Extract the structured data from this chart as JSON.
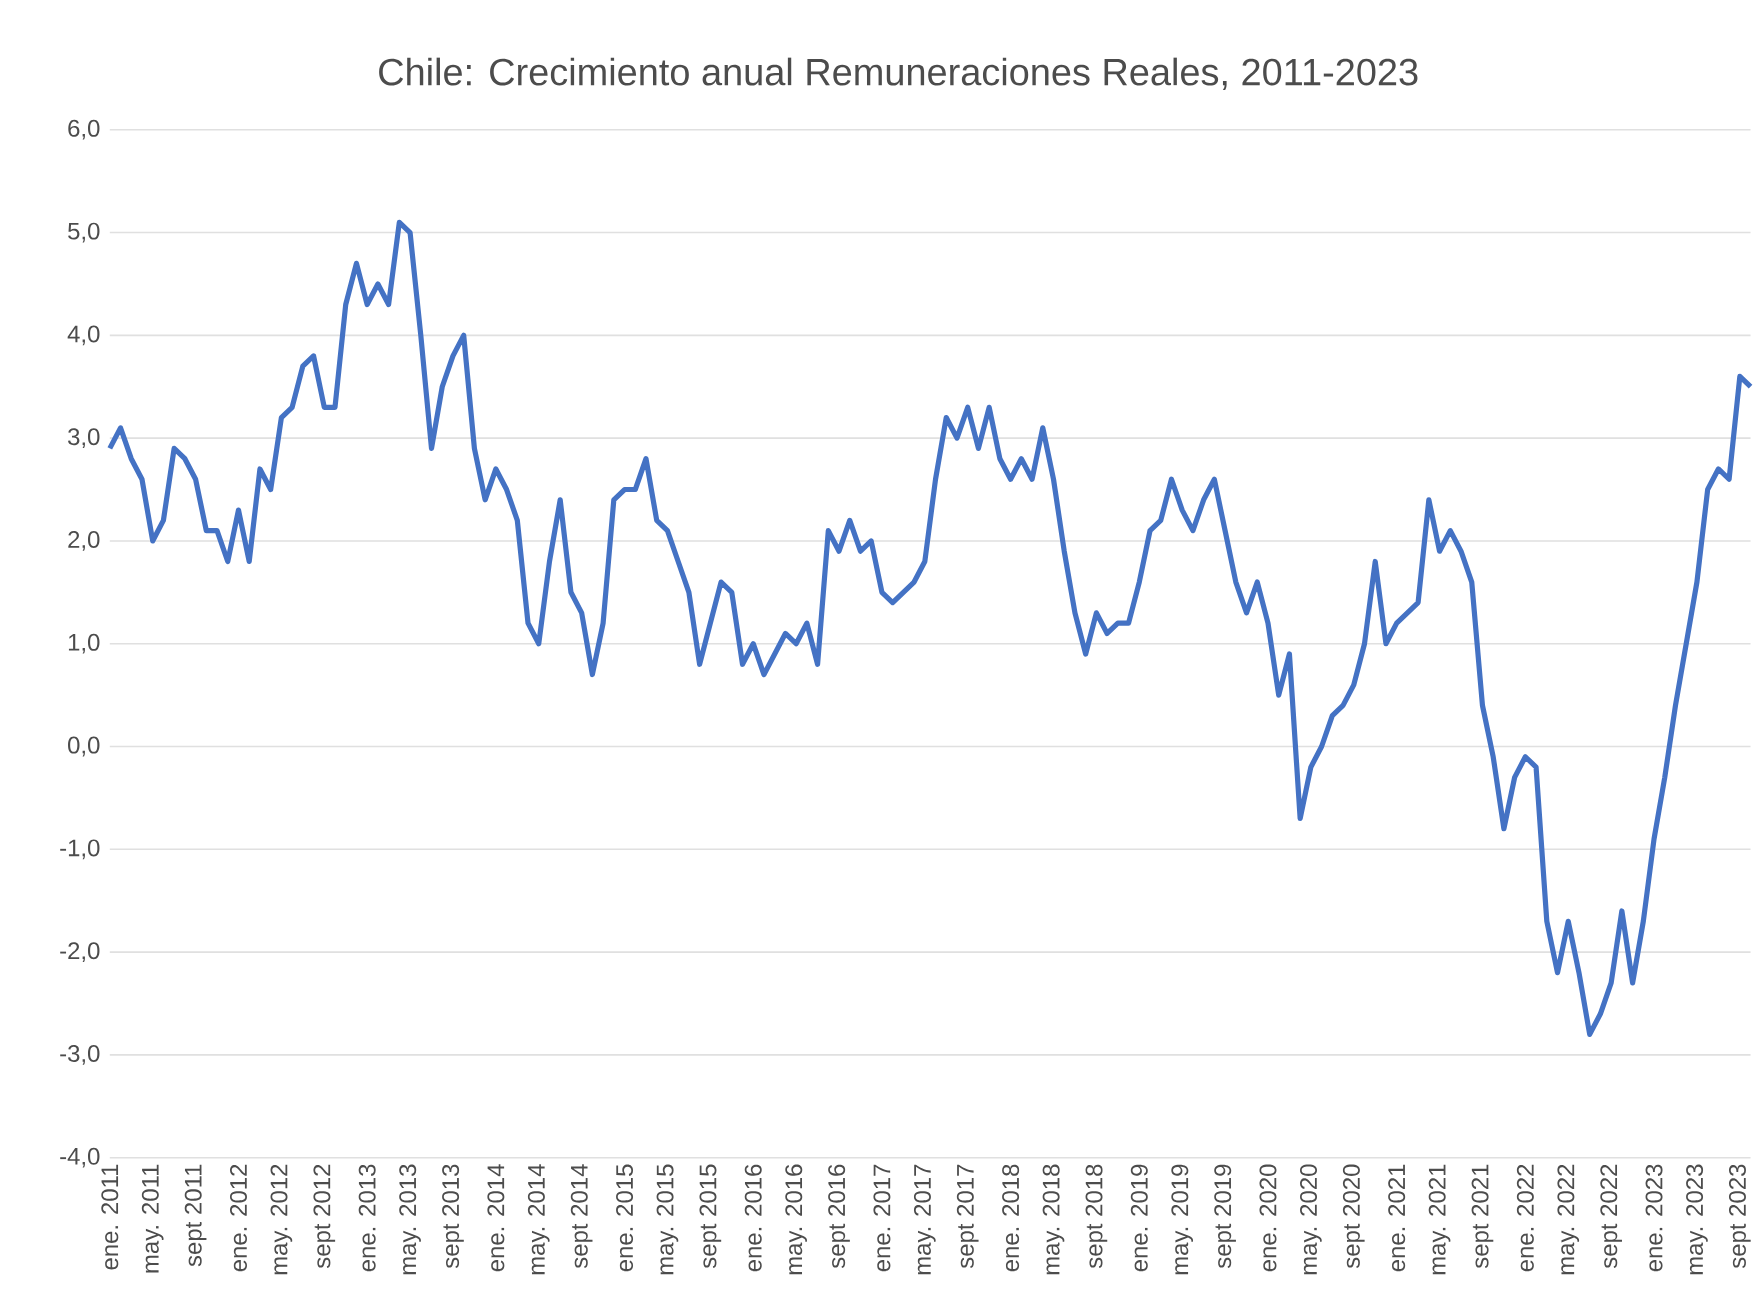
{
  "chart_data": {
    "type": "line",
    "title": "Chile: Crecimiento anual Remuneraciones Reales, 2011-2023",
    "categories": [
      "ene. 2011",
      null,
      null,
      null,
      "may. 2011",
      null,
      null,
      null,
      "sept 2011",
      null,
      null,
      null,
      "ene. 2012",
      null,
      null,
      null,
      "may. 2012",
      null,
      null,
      null,
      "sept 2012",
      null,
      null,
      null,
      "ene. 2013",
      null,
      null,
      null,
      "may. 2013",
      null,
      null,
      null,
      "sept 2013",
      null,
      null,
      null,
      "ene. 2014",
      null,
      null,
      null,
      "may. 2014",
      null,
      null,
      null,
      "sept 2014",
      null,
      null,
      null,
      "ene. 2015",
      null,
      null,
      null,
      "may. 2015",
      null,
      null,
      null,
      "sept 2015",
      null,
      null,
      null,
      "ene. 2016",
      null,
      null,
      null,
      "may. 2016",
      null,
      null,
      null,
      "sept 2016",
      null,
      null,
      null,
      "ene. 2017",
      null,
      null,
      null,
      "may. 2017",
      null,
      null,
      null,
      "sept 2017",
      null,
      null,
      null,
      "ene. 2018",
      null,
      null,
      null,
      "may. 2018",
      null,
      null,
      null,
      "sept 2018",
      null,
      null,
      null,
      "ene. 2019",
      null,
      null,
      null,
      "may. 2019",
      null,
      null,
      null,
      "sept 2019",
      null,
      null,
      null,
      "ene. 2020",
      null,
      null,
      null,
      "may. 2020",
      null,
      null,
      null,
      "sept 2020",
      null,
      null,
      null,
      "ene. 2021",
      null,
      null,
      null,
      "may. 2021",
      null,
      null,
      null,
      "sept 2021",
      null,
      null,
      null,
      "ene. 2022",
      null,
      null,
      null,
      "may. 2022",
      null,
      null,
      null,
      "sept 2022",
      null,
      null,
      null,
      "ene. 2023",
      null,
      null,
      null,
      "may. 2023",
      null,
      null,
      null,
      "sept 2023",
      null
    ],
    "series": [
      {
        "color": "#4472c4",
        "values": [
          2.9,
          3.1,
          2.8,
          2.6,
          2.0,
          2.2,
          2.9,
          2.8,
          2.6,
          2.1,
          2.1,
          1.8,
          2.3,
          1.8,
          2.7,
          2.5,
          3.2,
          3.3,
          3.7,
          3.8,
          3.3,
          3.3,
          4.3,
          4.7,
          4.3,
          4.5,
          4.3,
          5.1,
          5.0,
          4.0,
          2.9,
          3.5,
          3.8,
          4.0,
          2.9,
          2.4,
          2.7,
          2.5,
          2.2,
          1.2,
          1.0,
          1.8,
          2.4,
          1.5,
          1.3,
          0.7,
          1.2,
          2.4,
          2.5,
          2.5,
          2.8,
          2.2,
          2.1,
          1.8,
          1.5,
          0.8,
          1.2,
          1.6,
          1.5,
          0.8,
          1.0,
          0.7,
          0.9,
          1.1,
          1.0,
          1.2,
          0.8,
          2.1,
          1.9,
          2.2,
          1.9,
          2.0,
          1.5,
          1.4,
          1.5,
          1.6,
          1.8,
          2.6,
          3.2,
          3.0,
          3.3,
          2.9,
          3.3,
          2.8,
          2.6,
          2.8,
          2.6,
          3.1,
          2.6,
          1.9,
          1.3,
          0.9,
          1.3,
          1.1,
          1.2,
          1.2,
          1.6,
          2.1,
          2.2,
          2.6,
          2.3,
          2.1,
          2.4,
          2.6,
          2.1,
          1.6,
          1.3,
          1.6,
          1.2,
          0.5,
          0.9,
          -0.7,
          -0.2,
          0.0,
          0.3,
          0.4,
          0.6,
          1.0,
          1.8,
          1.0,
          1.2,
          1.3,
          1.4,
          2.4,
          1.9,
          2.1,
          1.9,
          1.6,
          0.4,
          -0.1,
          -0.8,
          -0.3,
          -0.1,
          -0.2,
          -1.7,
          -2.2,
          -1.7,
          -2.2,
          -2.8,
          -2.6,
          -2.3,
          -1.6,
          -2.3,
          -1.7,
          -0.9,
          -0.3,
          0.4,
          1.0,
          1.6,
          2.5,
          2.7,
          2.6,
          3.6,
          3.5
        ]
      }
    ],
    "ylim": [
      -4,
      6
    ],
    "yticks": [
      {
        "value": -4,
        "label": "-4,0"
      },
      {
        "value": -3,
        "label": "-3,0"
      },
      {
        "value": -2,
        "label": "-2,0"
      },
      {
        "value": -1,
        "label": "-1,0"
      },
      {
        "value": 0,
        "label": "0,0"
      },
      {
        "value": 1,
        "label": "1,0"
      },
      {
        "value": 2,
        "label": "2,0"
      },
      {
        "value": 3,
        "label": "3,0"
      },
      {
        "value": 4,
        "label": "4,0"
      },
      {
        "value": 5,
        "label": "5,0"
      },
      {
        "value": 6,
        "label": "6,0"
      }
    ],
    "grid": "y",
    "line_style": "solid"
  }
}
